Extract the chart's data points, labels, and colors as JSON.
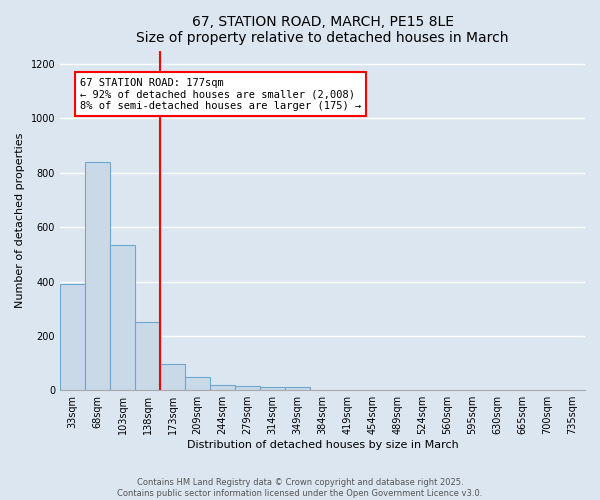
{
  "title": "67, STATION ROAD, MARCH, PE15 8LE",
  "subtitle": "Size of property relative to detached houses in March",
  "xlabel": "Distribution of detached houses by size in March",
  "ylabel": "Number of detached properties",
  "categories": [
    "33sqm",
    "68sqm",
    "103sqm",
    "138sqm",
    "173sqm",
    "209sqm",
    "244sqm",
    "279sqm",
    "314sqm",
    "349sqm",
    "384sqm",
    "419sqm",
    "454sqm",
    "489sqm",
    "524sqm",
    "560sqm",
    "595sqm",
    "630sqm",
    "665sqm",
    "700sqm",
    "735sqm"
  ],
  "values": [
    390,
    840,
    535,
    250,
    95,
    50,
    20,
    15,
    10,
    10,
    0,
    0,
    0,
    0,
    0,
    0,
    0,
    0,
    0,
    0,
    0
  ],
  "bar_color": "#c9d9e8",
  "bar_edgecolor": "#6ea8d0",
  "bar_linewidth": 0.8,
  "vline_x": 3.5,
  "vline_color": "red",
  "vline_linewidth": 1.5,
  "annotation_text": "67 STATION ROAD: 177sqm\n← 92% of detached houses are smaller (2,008)\n8% of semi-detached houses are larger (175) →",
  "ylim": [
    0,
    1250
  ],
  "bg_color": "#dce6f0",
  "plot_bg_color": "#dce6f0",
  "grid_color": "white",
  "footer1": "Contains HM Land Registry data © Crown copyright and database right 2025.",
  "footer2": "Contains public sector information licensed under the Open Government Licence v3.0.",
  "title_fontsize": 10,
  "axis_label_fontsize": 8,
  "tick_fontsize": 7,
  "annotation_fontsize": 7.5,
  "footer_fontsize": 6
}
